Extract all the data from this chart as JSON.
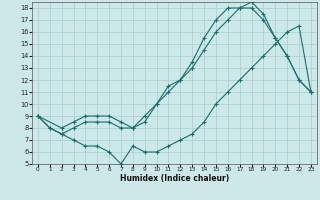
{
  "xlabel": "Humidex (Indice chaleur)",
  "bg_color": "#cce8e8",
  "grid_color": "#aacece",
  "line_color": "#1a6e6e",
  "xlim": [
    -0.5,
    23.5
  ],
  "ylim": [
    5,
    18.5
  ],
  "xticks": [
    0,
    1,
    2,
    3,
    4,
    5,
    6,
    7,
    8,
    9,
    10,
    11,
    12,
    13,
    14,
    15,
    16,
    17,
    18,
    19,
    20,
    21,
    22,
    23
  ],
  "yticks": [
    5,
    6,
    7,
    8,
    9,
    10,
    11,
    12,
    13,
    14,
    15,
    16,
    17,
    18
  ],
  "line1_x": [
    0,
    1,
    2,
    3,
    4,
    5,
    6,
    7,
    8,
    9,
    10,
    11,
    12,
    13,
    14,
    15,
    16,
    17,
    18,
    19,
    20,
    21,
    22,
    23
  ],
  "line1_y": [
    9,
    8,
    7.5,
    7,
    6.5,
    6.5,
    6,
    5,
    6.5,
    6,
    6,
    6.5,
    7,
    7.5,
    8.5,
    10,
    11,
    12,
    13,
    14,
    15,
    16,
    16.5,
    11
  ],
  "line2_x": [
    0,
    1,
    2,
    3,
    4,
    5,
    6,
    7,
    8,
    9,
    10,
    11,
    12,
    13,
    14,
    15,
    16,
    17,
    18,
    19,
    20,
    21,
    22,
    23
  ],
  "line2_y": [
    9,
    8,
    7.5,
    8,
    8.5,
    8.5,
    8.5,
    8,
    8,
    8.5,
    10,
    11.5,
    12,
    13.5,
    15.5,
    17,
    18,
    18,
    18,
    17,
    15.5,
    14,
    12,
    11
  ],
  "line3_x": [
    0,
    2,
    3,
    4,
    5,
    6,
    7,
    8,
    9,
    10,
    11,
    12,
    13,
    14,
    15,
    16,
    17,
    18,
    19,
    20,
    21,
    22,
    23
  ],
  "line3_y": [
    9,
    8,
    8.5,
    9,
    9,
    9,
    8.5,
    8,
    9,
    10,
    11,
    12,
    13,
    14.5,
    16,
    17,
    18,
    18.5,
    17.5,
    15.5,
    14,
    12,
    11
  ]
}
